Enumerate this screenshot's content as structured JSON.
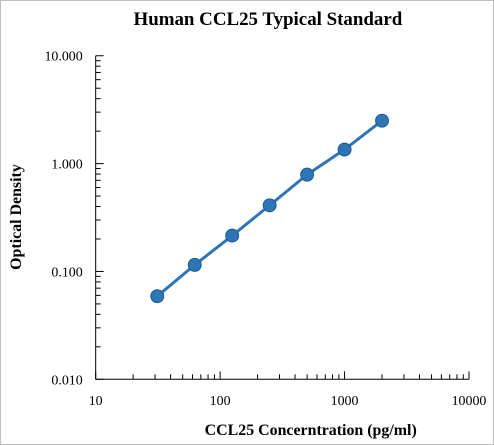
{
  "chart_data": {
    "type": "line",
    "title": "Human CCL25 Typical Standard",
    "xlabel": "CCL25 Concerntration (pg/ml)",
    "ylabel": "Optical Density",
    "x_scale": "log",
    "y_scale": "log",
    "xlim": [
      10,
      10000
    ],
    "ylim": [
      0.01,
      10
    ],
    "x_ticks": [
      10,
      100,
      1000,
      10000
    ],
    "x_tick_labels": [
      "10",
      "100",
      "1000",
      "10000"
    ],
    "y_ticks": [
      0.01,
      0.1,
      1,
      10
    ],
    "y_tick_labels": [
      "0.010",
      "0.100",
      "1.000",
      "10.000"
    ],
    "grid": false,
    "legend": "none",
    "series": [
      {
        "x": [
          31.25,
          62.5,
          125,
          250,
          500,
          1000,
          2000
        ],
        "y": [
          0.059,
          0.115,
          0.215,
          0.41,
          0.79,
          1.35,
          2.5
        ],
        "color": "#2e75b6",
        "marker": "circle"
      }
    ]
  }
}
